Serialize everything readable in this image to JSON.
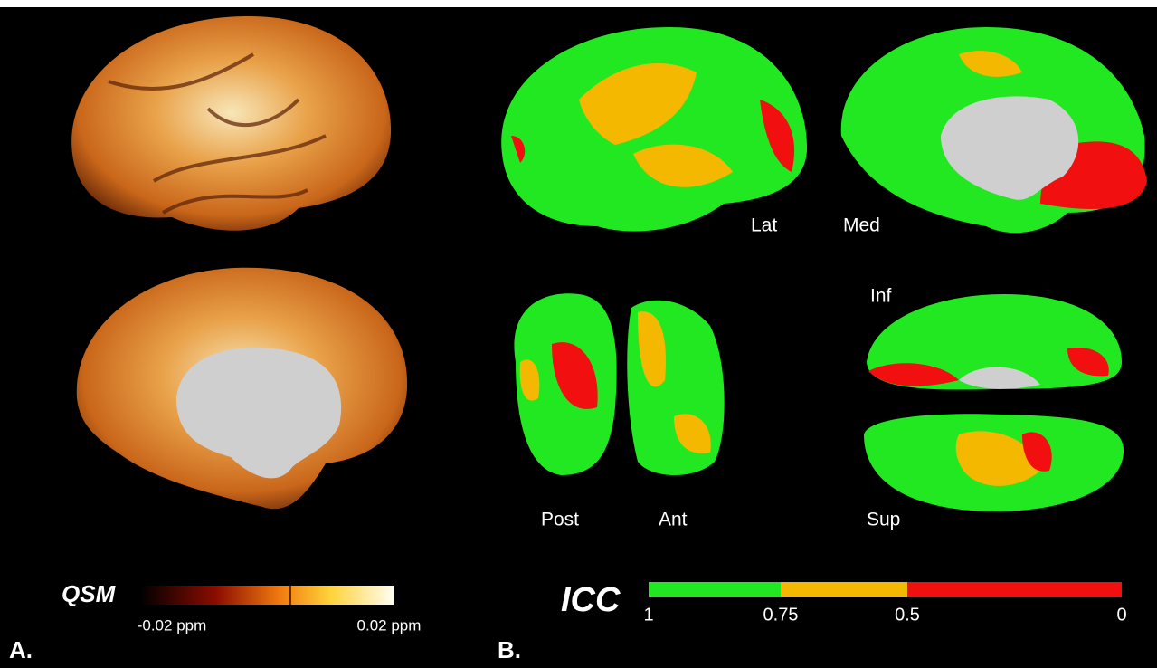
{
  "panel_a": {
    "label": "A.",
    "colorbar": {
      "title": "QSM",
      "min_label": "-0.02 ppm",
      "max_label": "0.02 ppm"
    }
  },
  "panel_b": {
    "label": "B.",
    "views": [
      "Lat",
      "Med",
      "Post",
      "Ant",
      "Inf",
      "Sup"
    ],
    "colorbar": {
      "title": "ICC",
      "ticks": [
        1,
        0.75,
        0.5,
        0
      ],
      "colors": [
        "#22e822",
        "#f5b800",
        "#f20f0f"
      ]
    }
  }
}
